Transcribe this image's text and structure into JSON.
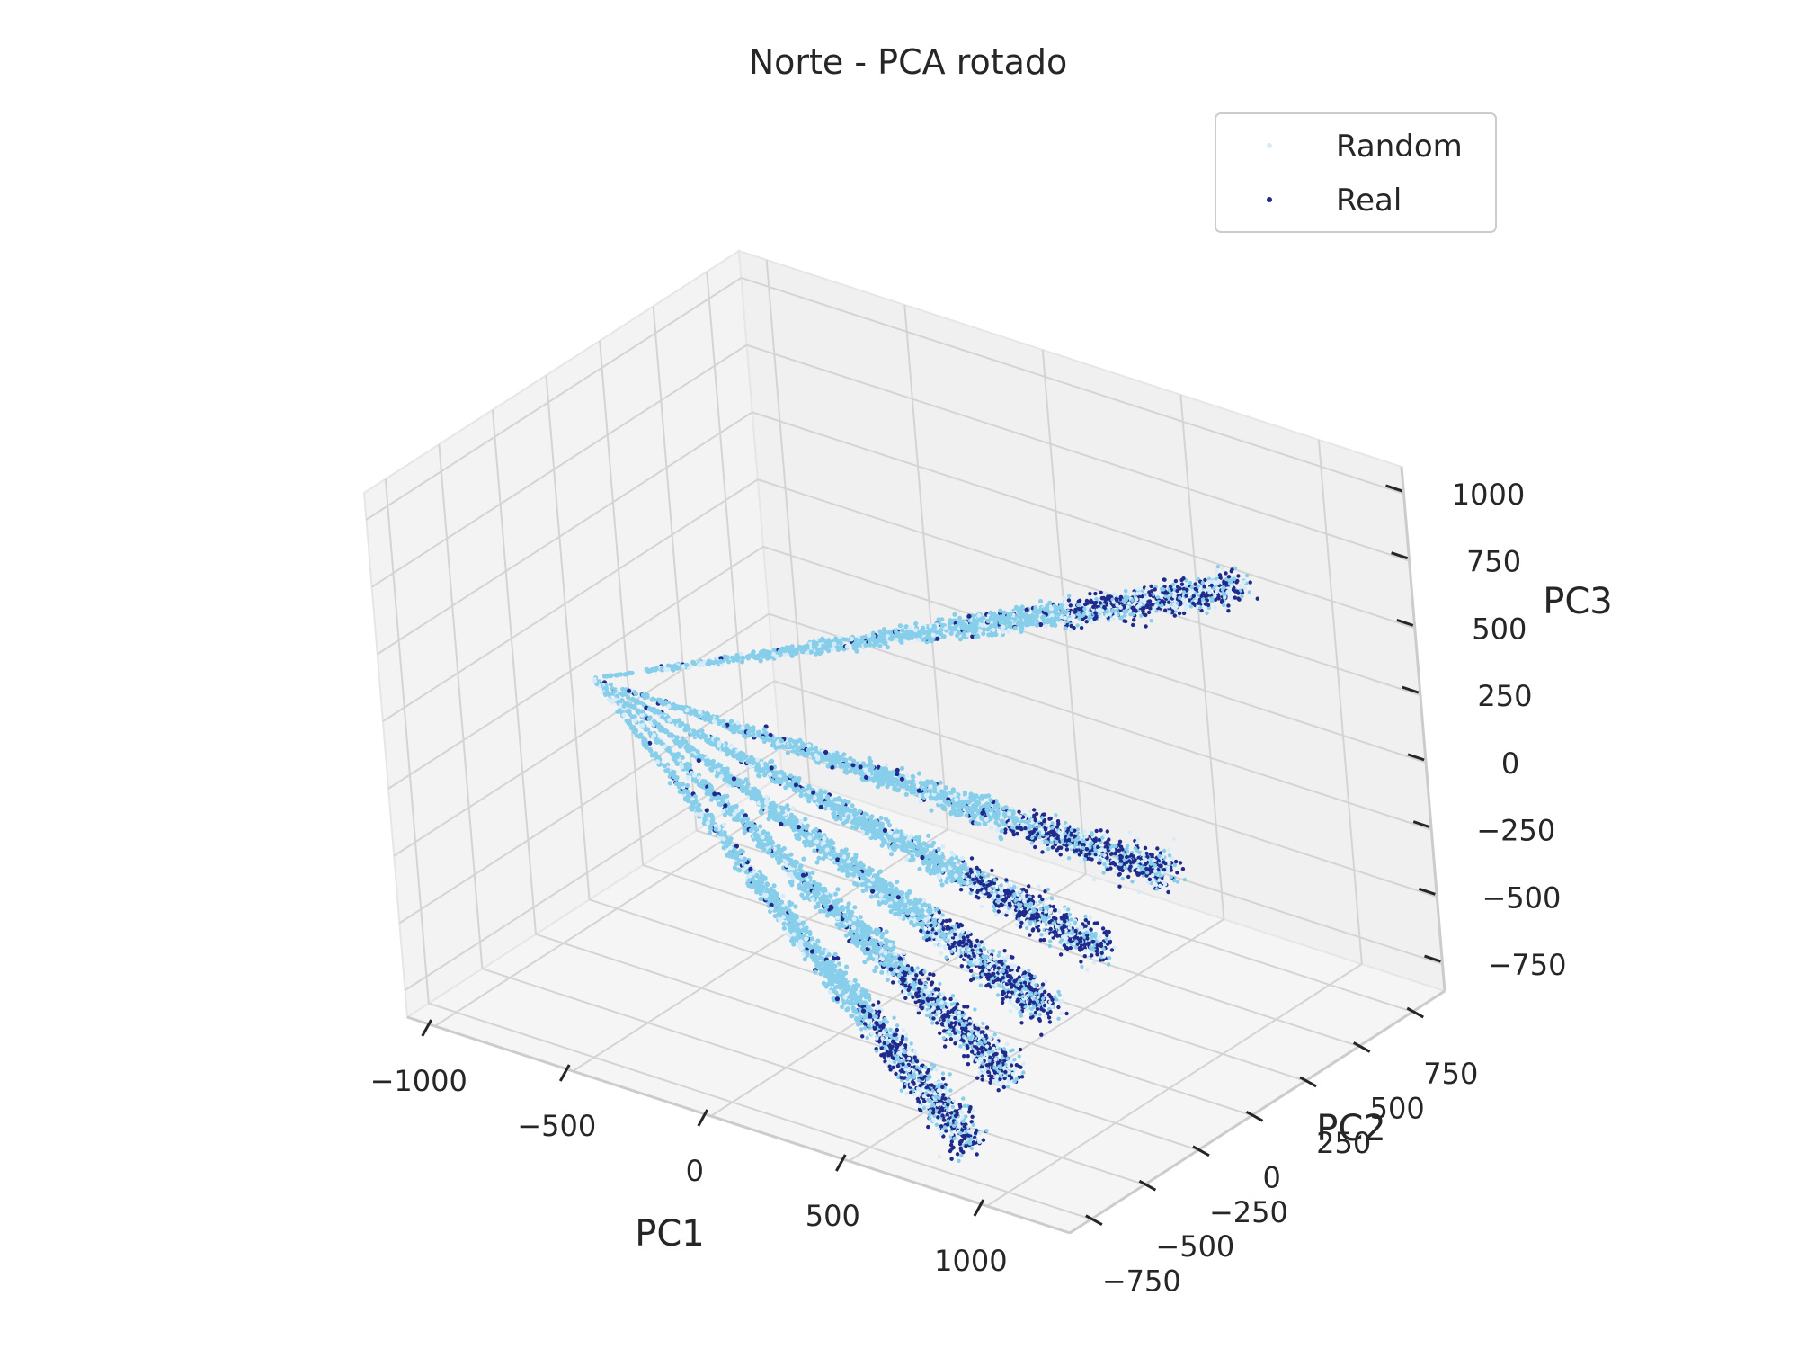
{
  "chart_data": {
    "type": "scatter",
    "projection": "3d",
    "title": "Norte - PCA rotado",
    "xlabel": "PC1",
    "ylabel": "PC2",
    "zlabel": "PC3",
    "xticks": [
      "−1000",
      "−500",
      "0",
      "500",
      "1000"
    ],
    "yticks": [
      "−750",
      "−500",
      "−250",
      "0",
      "250",
      "500",
      "750"
    ],
    "zticks": [
      "−750",
      "−500",
      "−250",
      "0",
      "250",
      "500",
      "750",
      "1000"
    ],
    "xlim": [
      -1100,
      1300
    ],
    "ylim": [
      -850,
      900
    ],
    "zlim": [
      -850,
      1100
    ],
    "grid": true,
    "legend_position": "upper-right",
    "series": [
      {
        "name": "Random",
        "color": "#d6ecfa"
      },
      {
        "name": "Real",
        "color": "#1f2a8c"
      }
    ],
    "overlay_color": "#87ceeb",
    "origin": [
      -1020,
      0,
      0
    ],
    "clusters": [
      {
        "tip": [
          1060,
          430,
          810
        ]
      },
      {
        "tip": [
          1120,
          -60,
          20
        ]
      },
      {
        "tip": [
          1050,
          -300,
          -160
        ]
      },
      {
        "tip": [
          1020,
          -520,
          -290
        ]
      },
      {
        "tip": [
          1020,
          -720,
          -430
        ]
      },
      {
        "tip": [
          880,
          -760,
          -700
        ]
      }
    ]
  }
}
